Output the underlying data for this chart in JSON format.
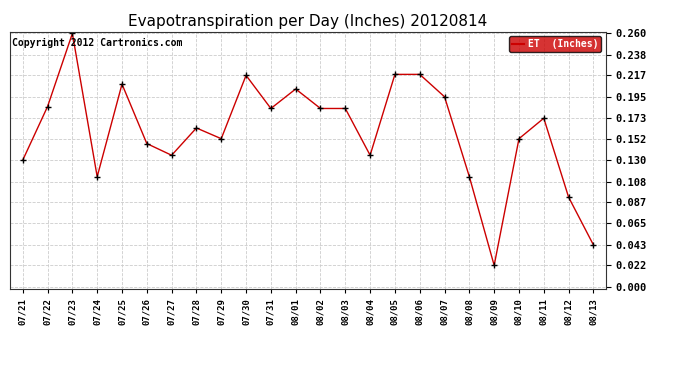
{
  "title": "Evapotranspiration per Day (Inches) 20120814",
  "copyright_text": "Copyright 2012 Cartronics.com",
  "legend_label": "ET  (Inches)",
  "x_labels": [
    "07/21",
    "07/22",
    "07/23",
    "07/24",
    "07/25",
    "07/26",
    "07/27",
    "07/28",
    "07/29",
    "07/30",
    "07/31",
    "08/01",
    "08/02",
    "08/03",
    "08/04",
    "08/05",
    "08/06",
    "08/07",
    "08/08",
    "08/09",
    "08/10",
    "08/11",
    "08/12",
    "08/13"
  ],
  "y_values": [
    0.13,
    0.185,
    0.26,
    0.113,
    0.208,
    0.147,
    0.135,
    0.163,
    0.152,
    0.217,
    0.183,
    0.203,
    0.183,
    0.183,
    0.135,
    0.218,
    0.218,
    0.195,
    0.113,
    0.022,
    0.152,
    0.173,
    0.092,
    0.043
  ],
  "y_ticks": [
    0.0,
    0.022,
    0.043,
    0.065,
    0.087,
    0.108,
    0.13,
    0.152,
    0.173,
    0.195,
    0.217,
    0.238,
    0.26
  ],
  "line_color": "#cc0000",
  "marker": "+",
  "marker_color": "#000000",
  "grid_color": "#cccccc",
  "background_color": "#ffffff",
  "title_fontsize": 11,
  "copyright_fontsize": 7,
  "legend_bg_color": "#cc0000",
  "legend_text_color": "#ffffff",
  "ylim_min": 0.0,
  "ylim_max": 0.26
}
